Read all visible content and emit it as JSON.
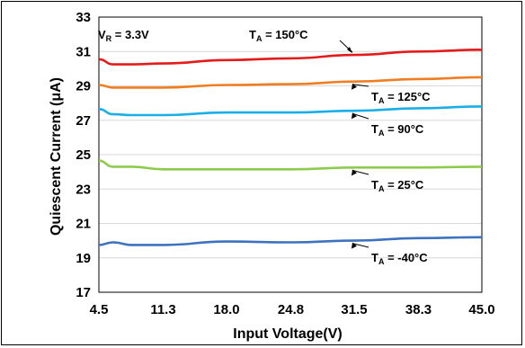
{
  "chart_data": {
    "type": "line",
    "xlabel": "Input Voltage(V)",
    "ylabel": "Quiescent Current (μA)",
    "xlim": [
      4.5,
      45.0
    ],
    "ylim": [
      17,
      33
    ],
    "x_ticks": [
      "4.5",
      "11.3",
      "18.0",
      "24.8",
      "31.5",
      "38.3",
      "45.0"
    ],
    "y_ticks": [
      "17",
      "19",
      "21",
      "23",
      "25",
      "27",
      "29",
      "31",
      "33"
    ],
    "grid": "horizontal",
    "legend": "inline annotations",
    "condition": {
      "main": "V",
      "sub": "R",
      "rest": " = 3.3V"
    },
    "series": [
      {
        "name": "TA = 150°C",
        "label_main": "T",
        "label_sub": "A",
        "label_rest": " = 150°C",
        "color": "#e31b1b",
        "x": [
          4.5,
          6.0,
          8.0,
          11.3,
          18.0,
          24.8,
          31.5,
          38.3,
          45.0
        ],
        "y": [
          30.55,
          30.25,
          30.25,
          30.3,
          30.5,
          30.6,
          30.8,
          31.0,
          31.1
        ]
      },
      {
        "name": "TA = 125°C",
        "label_main": "T",
        "label_sub": "A",
        "label_rest": " = 125°C",
        "color": "#f07d21",
        "x": [
          4.5,
          6.0,
          8.0,
          11.3,
          18.0,
          24.8,
          31.5,
          38.3,
          45.0
        ],
        "y": [
          29.05,
          28.9,
          28.9,
          28.9,
          29.05,
          29.1,
          29.25,
          29.4,
          29.5
        ]
      },
      {
        "name": "TA = 90°C",
        "label_main": "T",
        "label_sub": "A",
        "label_rest": " = 90°C",
        "color": "#19aee8",
        "x": [
          4.5,
          6.0,
          8.0,
          11.3,
          18.0,
          24.8,
          31.5,
          38.3,
          45.0
        ],
        "y": [
          27.65,
          27.35,
          27.3,
          27.3,
          27.45,
          27.45,
          27.55,
          27.7,
          27.8
        ]
      },
      {
        "name": "TA = 25°C",
        "label_main": "T",
        "label_sub": "A",
        "label_rest": " = 25°C",
        "color": "#8ecb4c",
        "x": [
          4.5,
          6.0,
          8.0,
          11.3,
          18.0,
          24.8,
          31.5,
          38.3,
          45.0
        ],
        "y": [
          24.65,
          24.3,
          24.3,
          24.15,
          24.15,
          24.15,
          24.25,
          24.25,
          24.3
        ]
      },
      {
        "name": "TA = -40°C",
        "label_main": "T",
        "label_sub": "A",
        "label_rest": " = -40°C",
        "color": "#3d72bf",
        "x": [
          4.5,
          6.0,
          8.0,
          11.3,
          18.0,
          24.8,
          31.5,
          38.3,
          45.0
        ],
        "y": [
          19.75,
          19.9,
          19.75,
          19.75,
          19.95,
          19.9,
          20.0,
          20.15,
          20.2
        ]
      }
    ]
  }
}
